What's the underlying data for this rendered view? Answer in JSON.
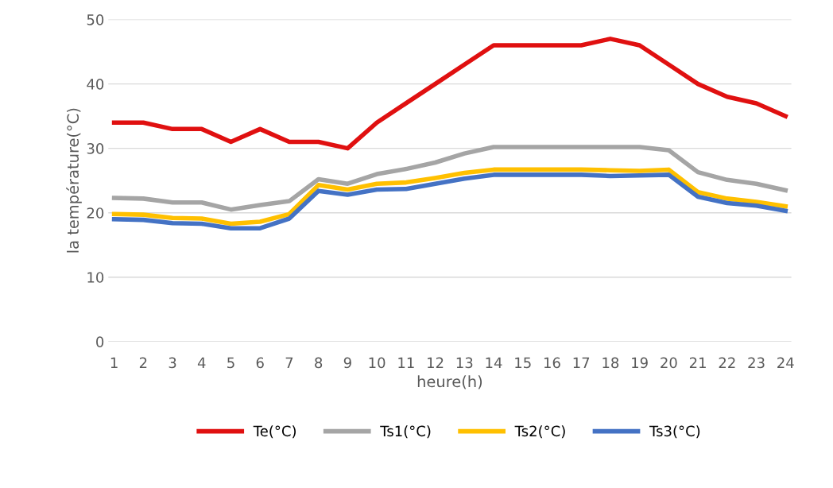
{
  "chart_data": {
    "type": "line",
    "xlabel": "heure(h)",
    "ylabel": "la température(°C)",
    "categories": [
      "1",
      "2",
      "3",
      "4",
      "5",
      "6",
      "7",
      "8",
      "9",
      "10",
      "11",
      "12",
      "13",
      "14",
      "15",
      "16",
      "17",
      "18",
      "19",
      "20",
      "21",
      "22",
      "23",
      "24"
    ],
    "ylim": [
      0,
      50
    ],
    "yticks": [
      0,
      10,
      20,
      30,
      40,
      50
    ],
    "grid": "y",
    "legend": "bottom",
    "marker": "none",
    "line_style": "solid",
    "series": [
      {
        "name": "Te(°C)",
        "color": "#e01010",
        "values": [
          34,
          34,
          33,
          33,
          31,
          33,
          31,
          31,
          30,
          34,
          37,
          40,
          43,
          46,
          46,
          46,
          46,
          47,
          46,
          43,
          40,
          38,
          37,
          35
        ]
      },
      {
        "name": "Ts1(°C)",
        "color": "#a5a5a5",
        "values": [
          22.3,
          22.2,
          21.6,
          21.6,
          20.5,
          21.2,
          21.8,
          25.2,
          24.5,
          26,
          26.8,
          27.8,
          29.2,
          30.2,
          30.2,
          30.2,
          30.2,
          30.2,
          30.2,
          29.7,
          26.3,
          25.1,
          24.5,
          23.5
        ]
      },
      {
        "name": "Ts2(°C)",
        "color": "#ffc000",
        "values": [
          19.8,
          19.7,
          19.2,
          19.1,
          18.3,
          18.6,
          19.8,
          24.3,
          23.6,
          24.5,
          24.7,
          25.4,
          26.2,
          26.7,
          26.7,
          26.7,
          26.7,
          26.6,
          26.5,
          26.7,
          23.2,
          22.2,
          21.7,
          21.0
        ]
      },
      {
        "name": "Ts3(°C)",
        "color": "#4472c4",
        "values": [
          19.0,
          18.9,
          18.4,
          18.3,
          17.6,
          17.6,
          19.1,
          23.4,
          22.8,
          23.6,
          23.7,
          24.5,
          25.3,
          25.9,
          25.9,
          25.9,
          25.9,
          25.7,
          25.8,
          25.9,
          22.5,
          21.5,
          21.1,
          20.3
        ]
      }
    ]
  }
}
